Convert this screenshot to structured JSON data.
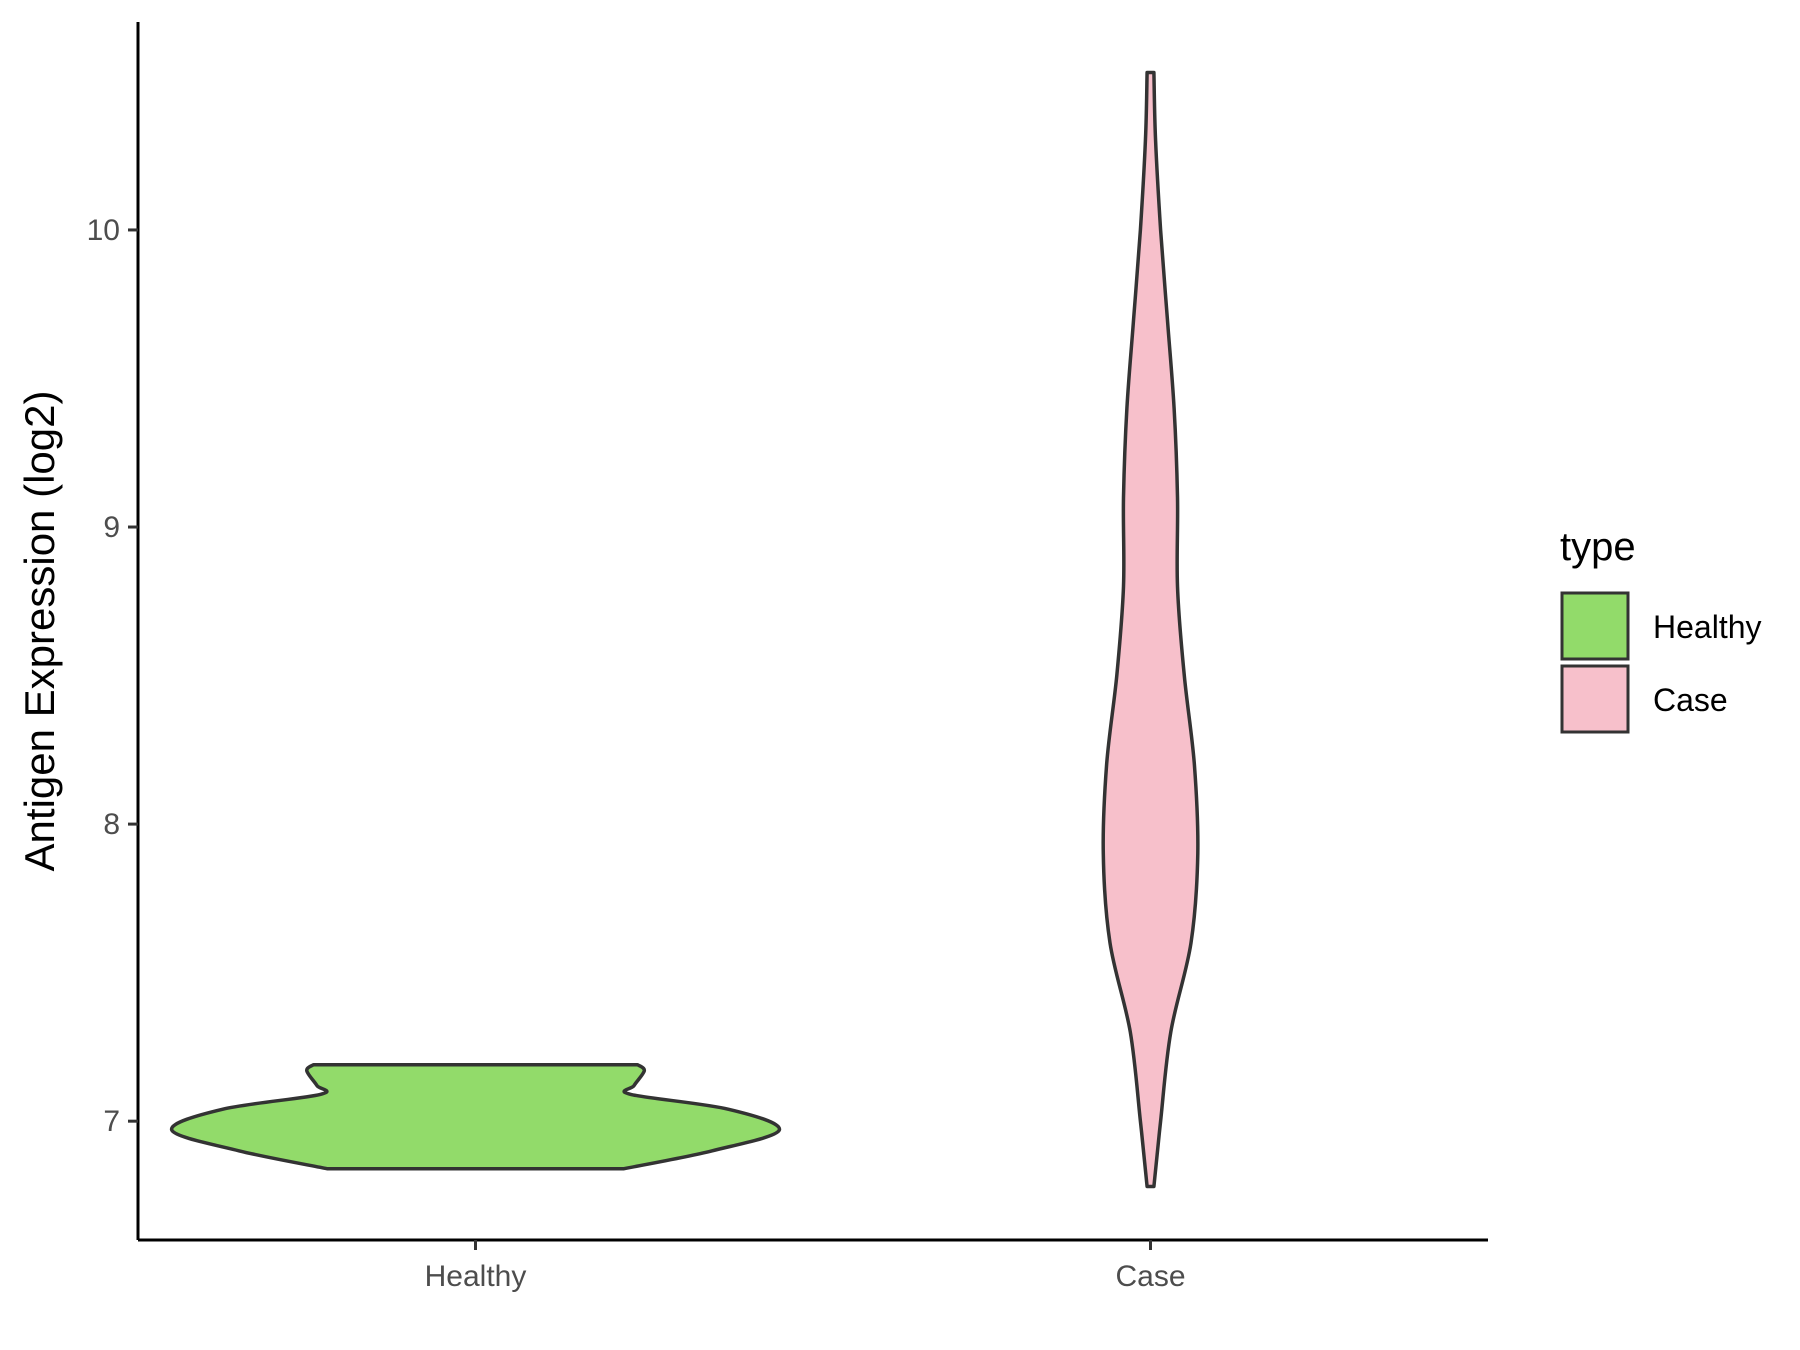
{
  "chart_data": {
    "type": "violin",
    "xlabel": "",
    "ylabel": "Antigen Expression (log2)",
    "ylim": [
      6.6,
      10.7
    ],
    "y_ticks": [
      "7",
      "8",
      "9",
      "10"
    ],
    "categories": [
      "Healthy",
      "Case"
    ],
    "series": [
      {
        "name": "Healthy",
        "color": "#92DB6A",
        "y_min": 6.84,
        "y_max": 7.19,
        "density_profile": [
          {
            "y": 6.84,
            "half_width": 0.44
          },
          {
            "y": 6.9,
            "half_width": 0.7
          },
          {
            "y": 6.97,
            "half_width": 0.9
          },
          {
            "y": 7.04,
            "half_width": 0.75
          },
          {
            "y": 7.09,
            "half_width": 0.46
          },
          {
            "y": 7.12,
            "half_width": 0.47
          },
          {
            "y": 7.17,
            "half_width": 0.5
          },
          {
            "y": 7.19,
            "half_width": 0.48
          }
        ]
      },
      {
        "name": "Case",
        "color": "#F7C0CB",
        "y_min": 6.78,
        "y_max": 10.53,
        "density_profile": [
          {
            "y": 6.78,
            "half_width": 0.01
          },
          {
            "y": 7.0,
            "half_width": 0.03
          },
          {
            "y": 7.3,
            "half_width": 0.06
          },
          {
            "y": 7.6,
            "half_width": 0.12
          },
          {
            "y": 7.9,
            "half_width": 0.14
          },
          {
            "y": 8.2,
            "half_width": 0.13
          },
          {
            "y": 8.5,
            "half_width": 0.1
          },
          {
            "y": 8.8,
            "half_width": 0.08
          },
          {
            "y": 9.1,
            "half_width": 0.08
          },
          {
            "y": 9.4,
            "half_width": 0.07
          },
          {
            "y": 9.7,
            "half_width": 0.05
          },
          {
            "y": 10.0,
            "half_width": 0.03
          },
          {
            "y": 10.3,
            "half_width": 0.015
          },
          {
            "y": 10.53,
            "half_width": 0.01
          }
        ]
      }
    ],
    "legend": {
      "title": "type",
      "placement": "right",
      "items": [
        {
          "label": "Healthy",
          "color": "#92DB6A"
        },
        {
          "label": "Case",
          "color": "#F7C0CB"
        }
      ]
    },
    "grid": false,
    "outline_color": "#333333"
  }
}
